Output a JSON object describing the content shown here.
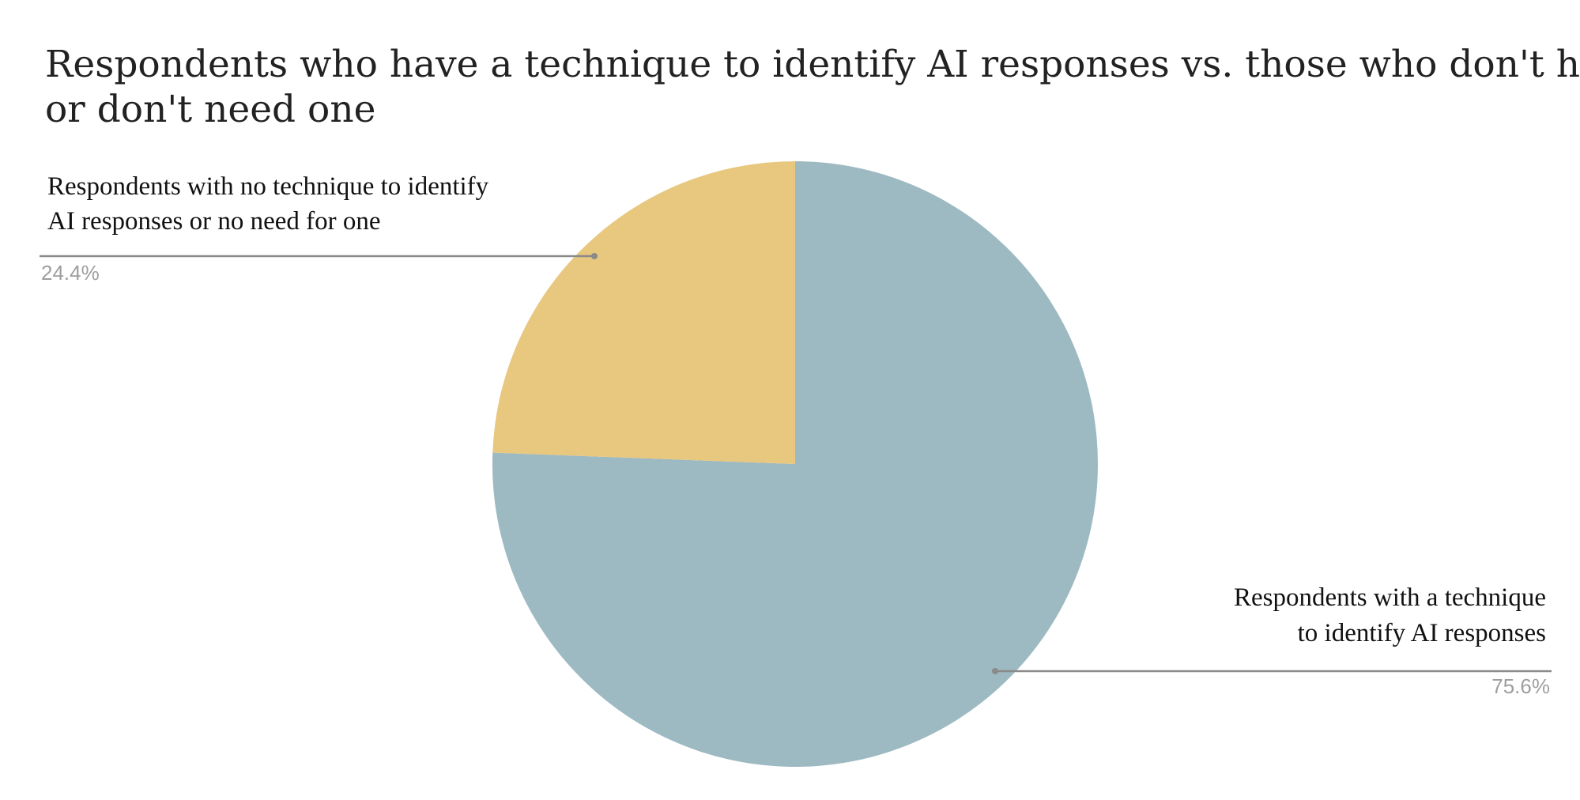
{
  "chart_data": {
    "type": "pie",
    "title": "Respondents who have a technique to identify AI responses vs. those who don't have or don't need one",
    "title_lines": [
      "Respondents who have a technique to identify AI responses vs. those who don't have",
      "or don't need one"
    ],
    "slices": [
      {
        "key": "with-technique",
        "label": "Respondents with a technique to identify AI responses",
        "label_lines": [
          "Respondents with a technique",
          "to identify AI responses"
        ],
        "value": 75.6,
        "percent_label": "75.6%",
        "color": "#9db9c1"
      },
      {
        "key": "no-technique",
        "label": "Respondents with no technique to identify AI responses or no need for one",
        "label_lines": [
          "Respondents with no technique to identify",
          "AI responses or no need for one"
        ],
        "value": 24.4,
        "percent_label": "24.4%",
        "color": "#e8c77e"
      }
    ],
    "start_angle": "12 o'clock",
    "direction": "clockwise",
    "legend": "none",
    "label_style": "leader-lines"
  }
}
